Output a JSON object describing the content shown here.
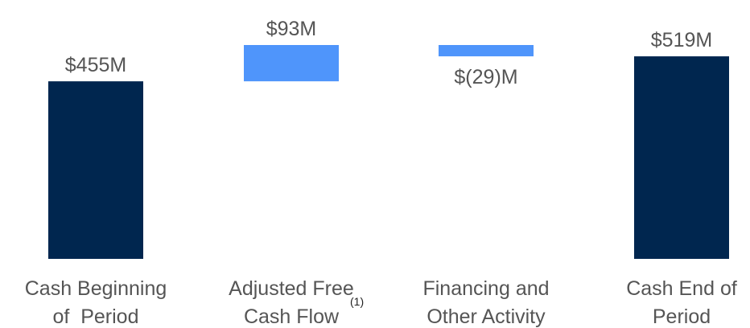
{
  "chart_data": {
    "type": "waterfall",
    "categories": [
      [
        "Cash Beginning",
        "of  Period"
      ],
      [
        "Adjusted Free",
        "Cash Flow"
      ],
      [
        "Financing and",
        "Other Activity"
      ],
      [
        "Cash End of",
        "Period"
      ]
    ],
    "category_footnotes": [
      null,
      "(1)",
      null,
      null
    ],
    "measure": [
      "total",
      "relative",
      "relative",
      "total"
    ],
    "values": [
      455,
      93,
      -29,
      519
    ],
    "value_labels": [
      "$455M",
      "$93M",
      "$(29)M",
      "$519M"
    ],
    "colors": {
      "total": "#00264f",
      "relative": "#4f95fb"
    }
  }
}
